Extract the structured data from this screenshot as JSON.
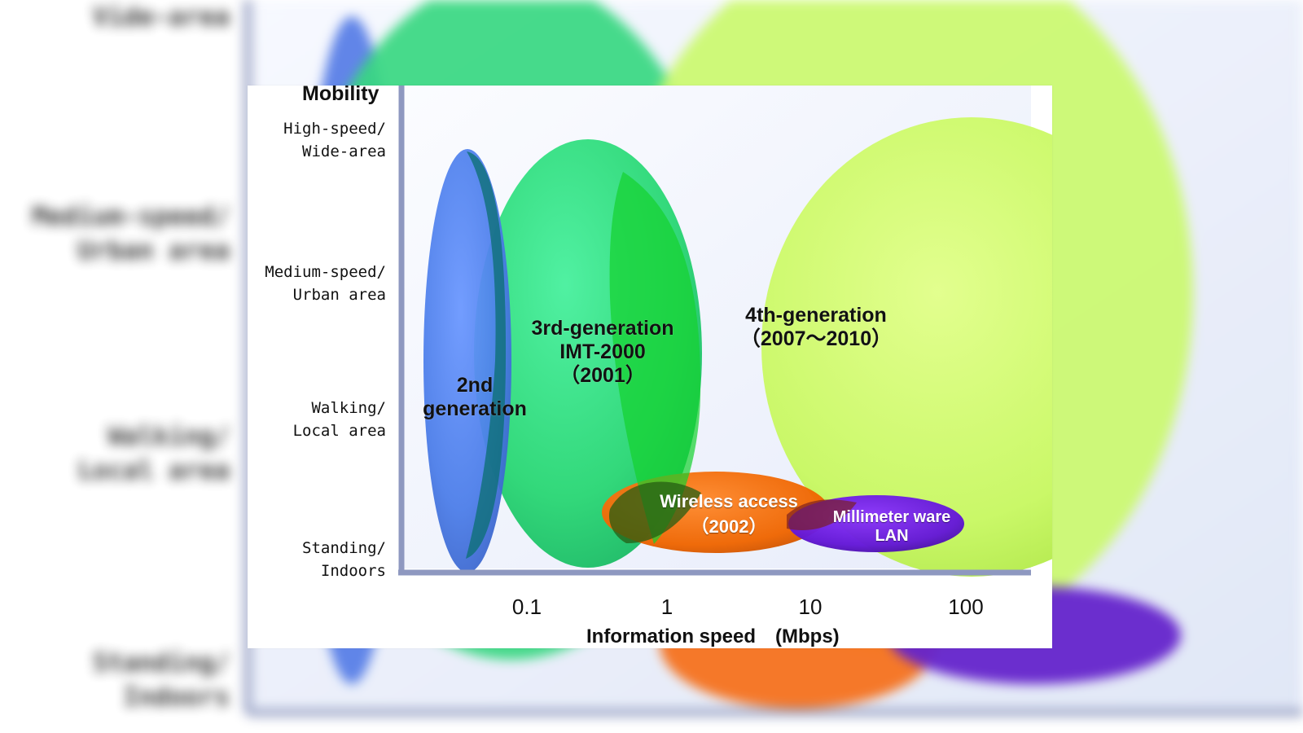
{
  "diagram": {
    "mobility_title": "Mobility",
    "mobility_levels": [
      "High-speed/\nWide-area",
      "Medium-speed/\nUrban area",
      "Walking/\nLocal area",
      "Standing/\nIndoors"
    ],
    "speed_ticks": [
      "0.1",
      "1",
      "10",
      "100"
    ],
    "speed_axis_title": "Information speed　(Mbps)",
    "regions": [
      {
        "label": "2nd\ngeneration",
        "color": "#4d7fe8"
      },
      {
        "label": "3rd-generation\nIMT-2000\n（2001）",
        "color": "#28d875"
      },
      {
        "label": "4th-generation\n（2007～2010）",
        "color": "#ccff66"
      },
      {
        "label": "Wireless access\n（2002）",
        "color": "#ff6b00"
      },
      {
        "label": "Millimeter ware\nLAN",
        "color": "#6d18d8"
      }
    ]
  },
  "background_blur_labels": [
    "Vide-area",
    "Medium-speed/\nUrban area",
    "Walking/\nLocal area",
    "Standing/\nIndoors"
  ]
}
